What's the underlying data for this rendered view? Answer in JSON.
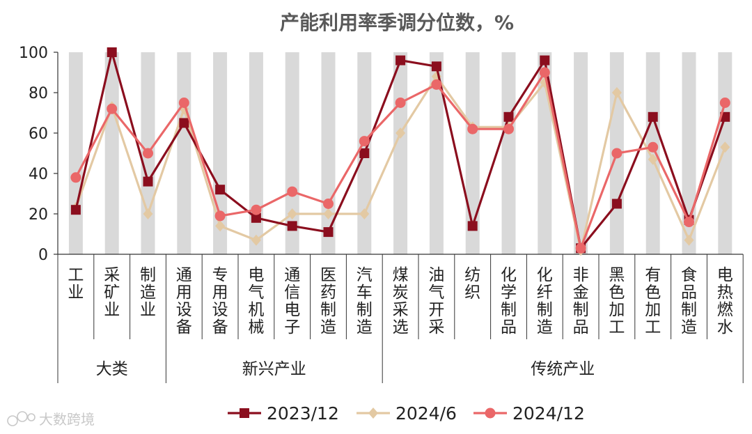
{
  "chart_data": {
    "type": "line",
    "title": "产能利用率季调分位数，%",
    "ylim": [
      0,
      100
    ],
    "yticks": [
      0,
      20,
      40,
      60,
      80,
      100
    ],
    "categories": [
      "工业",
      "采矿业",
      "制造业",
      "通用设备",
      "专用设备",
      "电气机械",
      "通信电子",
      "医药制造",
      "汽车制造",
      "煤炭采选",
      "油气开采",
      "纺织",
      "化学制品",
      "化纤制造",
      "非金制品",
      "黑色加工",
      "有色加工",
      "食品制造",
      "电热燃水"
    ],
    "groups": [
      {
        "label": "大类",
        "start": 0,
        "end": 2
      },
      {
        "label": "新兴产业",
        "start": 3,
        "end": 8
      },
      {
        "label": "传统产业",
        "start": 9,
        "end": 18
      }
    ],
    "series": [
      {
        "name": "2023/12",
        "color": "#8b0e1e",
        "marker": "square",
        "values": [
          22,
          100,
          36,
          65,
          32,
          18,
          14,
          11,
          50,
          96,
          93,
          14,
          68,
          96,
          3,
          25,
          68,
          17,
          68
        ]
      },
      {
        "name": "2024/6",
        "color": "#e3c9a3",
        "marker": "diamond",
        "values": [
          23,
          73,
          20,
          72,
          14,
          7,
          20,
          20,
          20,
          60,
          88,
          63,
          63,
          85,
          2,
          80,
          47,
          7,
          53
        ]
      },
      {
        "name": "2024/12",
        "color": "#ea6768",
        "marker": "circle",
        "values": [
          38,
          72,
          50,
          75,
          19,
          22,
          31,
          25,
          56,
          75,
          84,
          62,
          62,
          90,
          3,
          50,
          53,
          16,
          75
        ]
      }
    ],
    "legend_position": "bottom",
    "background_bars": "alternating gray columns"
  },
  "watermark": {
    "text": "大数跨境"
  }
}
